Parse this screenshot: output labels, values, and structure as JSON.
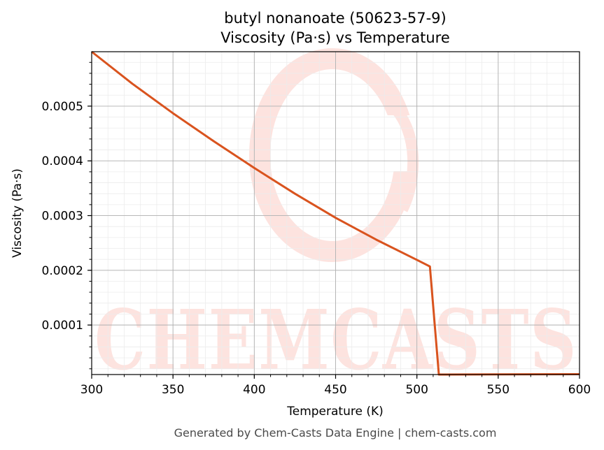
{
  "chart_data": {
    "type": "line",
    "title": "butyl nonanoate (50623-57-9)",
    "subtitle": "Viscosity (Pa·s) vs Temperature",
    "xlabel": "Temperature (K)",
    "ylabel": "Viscosity (Pa·s)",
    "xlim": [
      300,
      600
    ],
    "ylim": [
      9.5e-06,
      0.0005995
    ],
    "x_ticks": [
      300,
      350,
      400,
      450,
      500,
      550,
      600
    ],
    "x_tick_labels": [
      "300",
      "350",
      "400",
      "450",
      "500",
      "550",
      "600"
    ],
    "y_ticks": [
      0.0001,
      0.0002,
      0.0003,
      0.0004,
      0.0005
    ],
    "y_tick_labels": [
      "0.0001",
      "0.0002",
      "0.0003",
      "0.0004",
      "0.0005"
    ],
    "grid": true,
    "legend": "none",
    "series": [
      {
        "color": "#d9531e",
        "x": [
          300,
          325,
          350,
          375,
          400,
          425,
          450,
          475,
          500,
          508,
          513.5,
          550,
          600
        ],
        "y": [
          0.0005995,
          0.000541,
          0.000487,
          0.000436,
          0.000387,
          0.00034,
          0.000296,
          0.000256,
          0.000219,
          0.000207,
          9.5e-06,
          9.8e-06,
          1.02e-05
        ]
      }
    ]
  },
  "watermark": {
    "text": "CHEMCASTS",
    "color": "#fde3df"
  },
  "footer": "Generated by Chem-Casts Data Engine | chem-casts.com"
}
